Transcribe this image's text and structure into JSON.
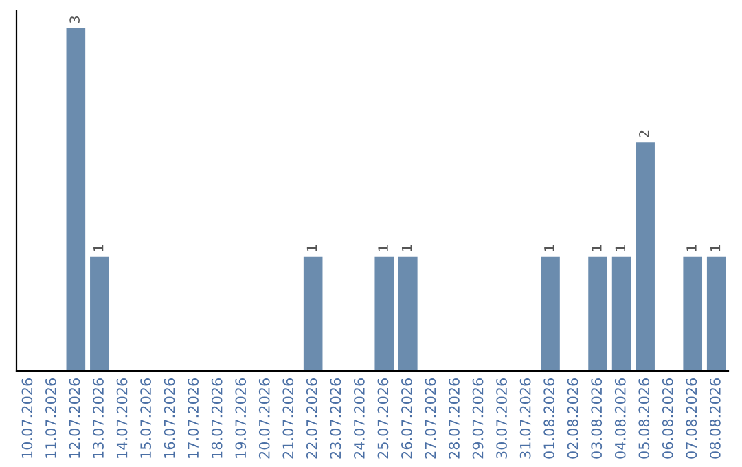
{
  "chart_data": {
    "type": "bar",
    "categories": [
      "10.07.2026",
      "11.07.2026",
      "12.07.2026",
      "13.07.2026",
      "14.07.2026",
      "15.07.2026",
      "16.07.2026",
      "17.07.2026",
      "18.07.2026",
      "19.07.2026",
      "20.07.2026",
      "21.07.2026",
      "22.07.2026",
      "23.07.2026",
      "24.07.2026",
      "25.07.2026",
      "26.07.2026",
      "27.07.2026",
      "28.07.2026",
      "29.07.2026",
      "30.07.2026",
      "31.07.2026",
      "01.08.2026",
      "02.08.2026",
      "03.08.2026",
      "04.08.2026",
      "05.08.2026",
      "06.08.2026",
      "07.08.2026",
      "08.08.2026"
    ],
    "values": [
      0,
      0,
      3,
      1,
      0,
      0,
      0,
      0,
      0,
      0,
      0,
      0,
      1,
      0,
      0,
      1,
      1,
      0,
      0,
      0,
      0,
      0,
      1,
      0,
      1,
      1,
      2,
      0,
      1,
      1
    ],
    "value_labels": [
      null,
      null,
      "3",
      "1",
      null,
      null,
      null,
      null,
      null,
      null,
      null,
      null,
      "1",
      null,
      null,
      "1",
      "1",
      null,
      null,
      null,
      null,
      null,
      "1",
      null,
      "1",
      "1",
      "2",
      null,
      "1",
      "1"
    ],
    "color": "#6b8cae",
    "tick_labels": "x",
    "grid": false,
    "legend": false
  }
}
